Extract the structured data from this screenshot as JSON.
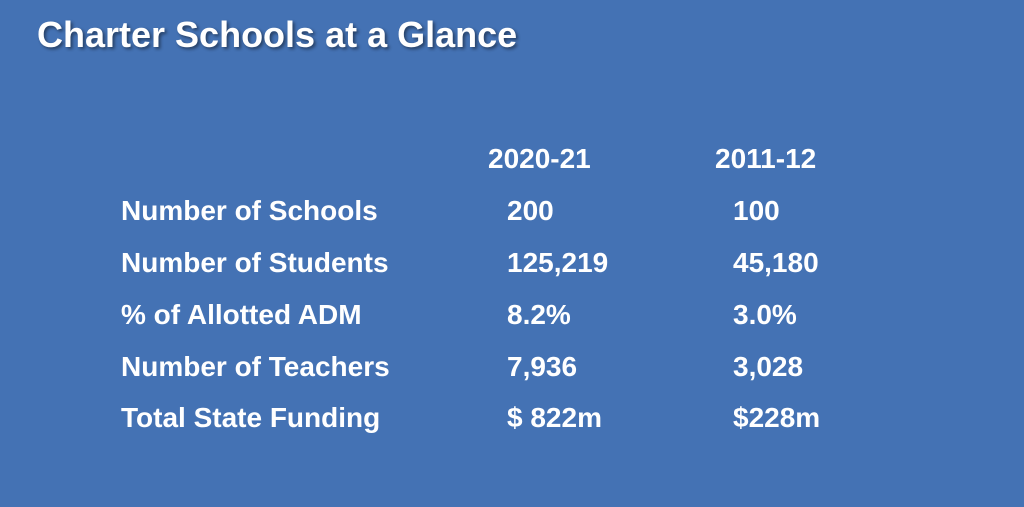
{
  "slide": {
    "title": "Charter Schools at a Glance",
    "background_color": "#4472b4",
    "text_color": "#ffffff"
  },
  "table": {
    "columns": [
      "2020-21",
      "2011-12"
    ],
    "rows": [
      {
        "label": "Number of Schools",
        "values": [
          "200",
          "100"
        ]
      },
      {
        "label": "Number of Students",
        "values": [
          "125,219",
          "45,180"
        ]
      },
      {
        "label": "% of Allotted ADM",
        "values": [
          "8.2%",
          "3.0%"
        ]
      },
      {
        "label": "Number of Teachers",
        "values": [
          "7,936",
          "3,028"
        ]
      },
      {
        "label": "Total State Funding",
        "values": [
          "$ 822m",
          "$228m"
        ]
      }
    ]
  }
}
